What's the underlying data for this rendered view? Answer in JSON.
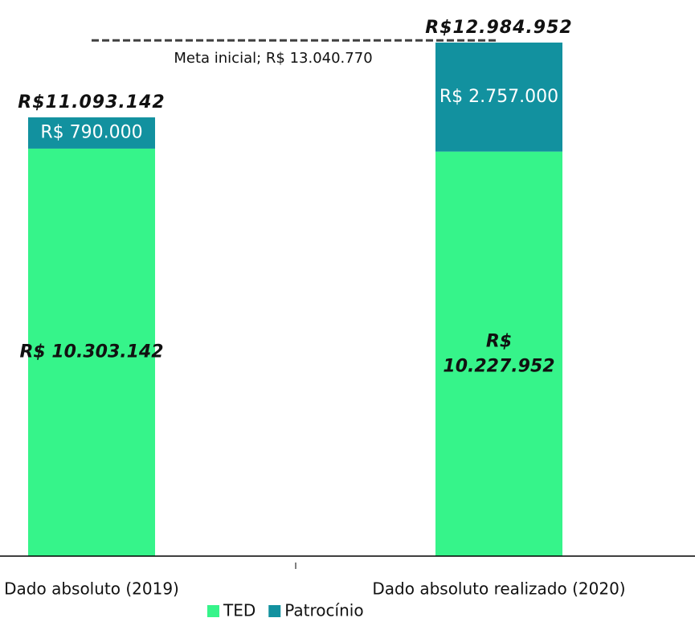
{
  "chart_data": {
    "type": "stacked_bar",
    "categories": [
      "Dado absoluto (2019)",
      "Dado absoluto realizado (2020)"
    ],
    "series": [
      {
        "name": "TED",
        "color": "#36f48a",
        "values": [
          10303142,
          10227952
        ],
        "value_labels": [
          "R$ 10.303.142",
          "R$ 10.227.952"
        ]
      },
      {
        "name": "Patrocínio",
        "color": "#12919f",
        "values": [
          790000,
          2757000
        ],
        "value_labels": [
          "R$ 790.000",
          "R$ 2.757.000"
        ]
      }
    ],
    "totals": [
      11093142,
      12984952
    ],
    "total_labels": [
      "R$11.093.142",
      "R$12.984.952"
    ],
    "target": {
      "value": 13040770,
      "label": "Meta inicial; R$ 13.040.770",
      "color": "#404040"
    },
    "ylim": [
      0,
      14000000
    ],
    "legend": "bottom"
  }
}
